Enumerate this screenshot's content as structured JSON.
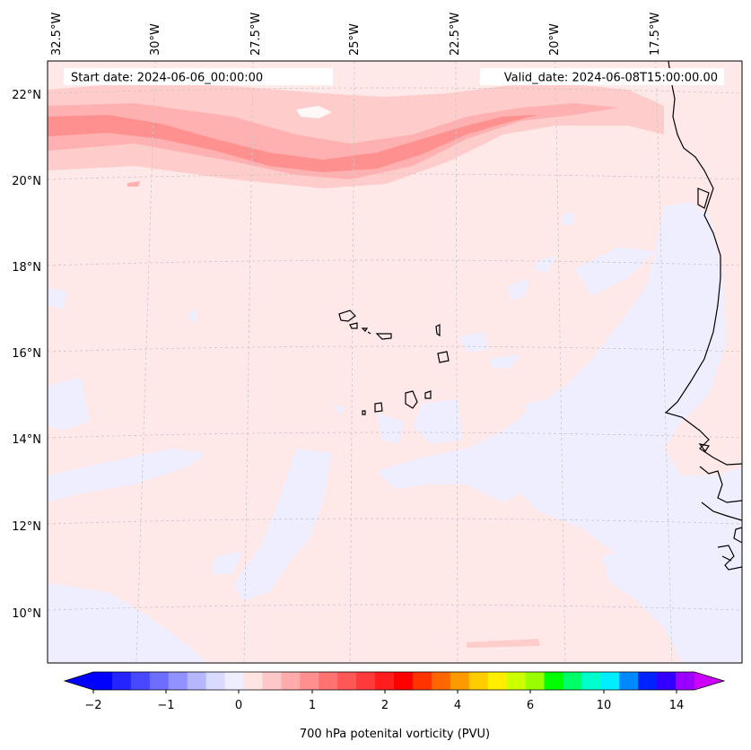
{
  "map": {
    "start_date_text": "Start date: 2024-06-06_00:00:00",
    "valid_date_text": "Valid_date: 2024-06-08T15:00:00.00",
    "lon_labels": [
      "32.5°W",
      "30°W",
      "27.5°W",
      "25°W",
      "22.5°W",
      "20°W",
      "17.5°W"
    ],
    "lat_labels": [
      "22°N",
      "20°N",
      "18°N",
      "16°N",
      "14°N",
      "12°N",
      "10°N"
    ],
    "colors": {
      "background_field": "#ffe8e8",
      "negative_field": "#eeeeff",
      "band_light": "#ffcccc",
      "band_mid": "#ffb0b0",
      "band_core": "#ff9090",
      "coastline": "#000000",
      "gridline": "#c8c8c8"
    }
  },
  "colorbar": {
    "title": "700 hPa potenital vorticity (PVU)",
    "tick_labels": [
      "−2",
      "−1",
      "0",
      "1",
      "2",
      "4",
      "6",
      "10",
      "14"
    ],
    "colors": [
      "#0000ff",
      "#2424ff",
      "#4848ff",
      "#6d6dff",
      "#9191ff",
      "#b6b6ff",
      "#dadaff",
      "#eeeeff",
      "#ffe4e4",
      "#ffc8c8",
      "#ffabab",
      "#ff8f8f",
      "#ff7272",
      "#ff5656",
      "#ff3a3a",
      "#ff1d1d",
      "#ff0000",
      "#ff3300",
      "#ff6600",
      "#ff9900",
      "#ffcc00",
      "#ffee00",
      "#ccff00",
      "#99ff00",
      "#00ff00",
      "#00ff66",
      "#00ffcc",
      "#00eeff",
      "#0088ff",
      "#0022ff",
      "#3300ff",
      "#9900ff"
    ],
    "under_color": "#0000ff",
    "over_color": "#cc00ff"
  }
}
